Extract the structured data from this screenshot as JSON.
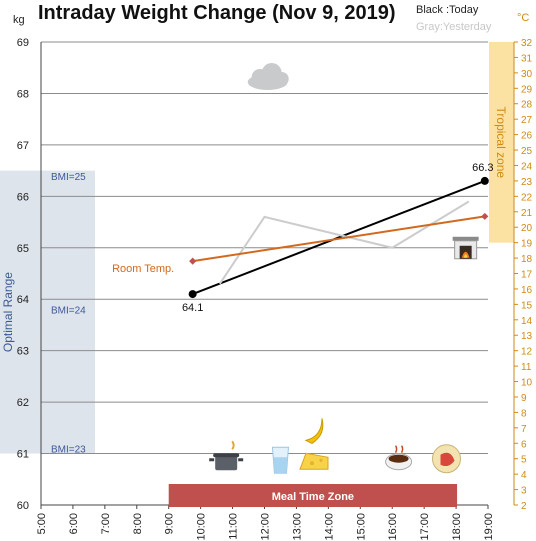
{
  "title": "Intraday Weight Change (Nov 9, 2019)",
  "legend": {
    "black": "Black :Today",
    "gray": "Gray:Yesterday"
  },
  "units": {
    "left": "kg",
    "right": "°C"
  },
  "chart_data": {
    "type": "line",
    "x_ticks": [
      "5:00",
      "6:00",
      "7:00",
      "8:00",
      "9:00",
      "10:00",
      "11:00",
      "12:00",
      "13:00",
      "14:00",
      "15:00",
      "16:00",
      "17:00",
      "18:00",
      "19:00"
    ],
    "y_left": {
      "label": "kg",
      "range": [
        60,
        69
      ],
      "ticks": [
        "60",
        "61",
        "62",
        "63",
        "64",
        "65",
        "66",
        "67",
        "68",
        "69"
      ]
    },
    "y_right": {
      "label": "°C",
      "range": [
        2,
        32
      ],
      "ticks": [
        "2",
        "3",
        "4",
        "5",
        "6",
        "7",
        "8",
        "9",
        "10",
        "11",
        "12",
        "13",
        "14",
        "15",
        "16",
        "17",
        "18",
        "19",
        "20",
        "21",
        "22",
        "23",
        "24",
        "25",
        "26",
        "27",
        "28",
        "29",
        "30",
        "31",
        "32"
      ]
    },
    "grid": true,
    "series": [
      {
        "name": "Today",
        "color": "#000000",
        "axis": "left",
        "points": [
          {
            "x": 9.75,
            "y": 64.1,
            "label": "64.1"
          },
          {
            "x": 18.9,
            "y": 66.3,
            "label": "66.3"
          }
        ]
      },
      {
        "name": "Yesterday",
        "color": "#cccccc",
        "axis": "left",
        "points": [
          {
            "x": 10.6,
            "y": 64.3
          },
          {
            "x": 12.0,
            "y": 65.6
          },
          {
            "x": 16.0,
            "y": 65.0
          },
          {
            "x": 18.4,
            "y": 65.9
          }
        ]
      },
      {
        "name": "Room Temp.",
        "color": "#d2691e",
        "axis": "right",
        "points": [
          {
            "x": 9.75,
            "y": 17.8
          },
          {
            "x": 18.9,
            "y": 20.7
          }
        ]
      }
    ],
    "bands": [
      {
        "label": "Optimal Range",
        "axis": "left",
        "y_range": [
          61,
          66.5
        ],
        "color": "#dee4ec"
      },
      {
        "label": "Tropical zone",
        "axis": "right",
        "y_range": [
          19,
          32
        ],
        "color": "#fbe2a2"
      },
      {
        "label": "Meal Time Zone",
        "x_range": [
          9,
          18
        ],
        "color": "#c0504d"
      }
    ],
    "bmi_labels": [
      {
        "text": "BMI=25",
        "y": 66.4
      },
      {
        "text": "BMI=24",
        "y": 63.8
      },
      {
        "text": "BMI=23",
        "y": 61.1
      }
    ],
    "series_label": "Room Temp.",
    "icons": [
      {
        "name": "cloud-icon",
        "x": 12.1,
        "y": 68.3
      },
      {
        "name": "fireplace-icon",
        "x": 18.3,
        "y": 65.0
      },
      {
        "name": "pot-icon",
        "x": 10.8,
        "y": 60.85
      },
      {
        "name": "water-glass-icon",
        "x": 12.5,
        "y": 60.85
      },
      {
        "name": "banana-icon",
        "x": 13.55,
        "y": 61.45
      },
      {
        "name": "cheese-icon",
        "x": 13.55,
        "y": 60.85
      },
      {
        "name": "soup-bowl-icon",
        "x": 16.2,
        "y": 60.9
      },
      {
        "name": "plate-icon",
        "x": 17.7,
        "y": 60.9
      }
    ]
  }
}
